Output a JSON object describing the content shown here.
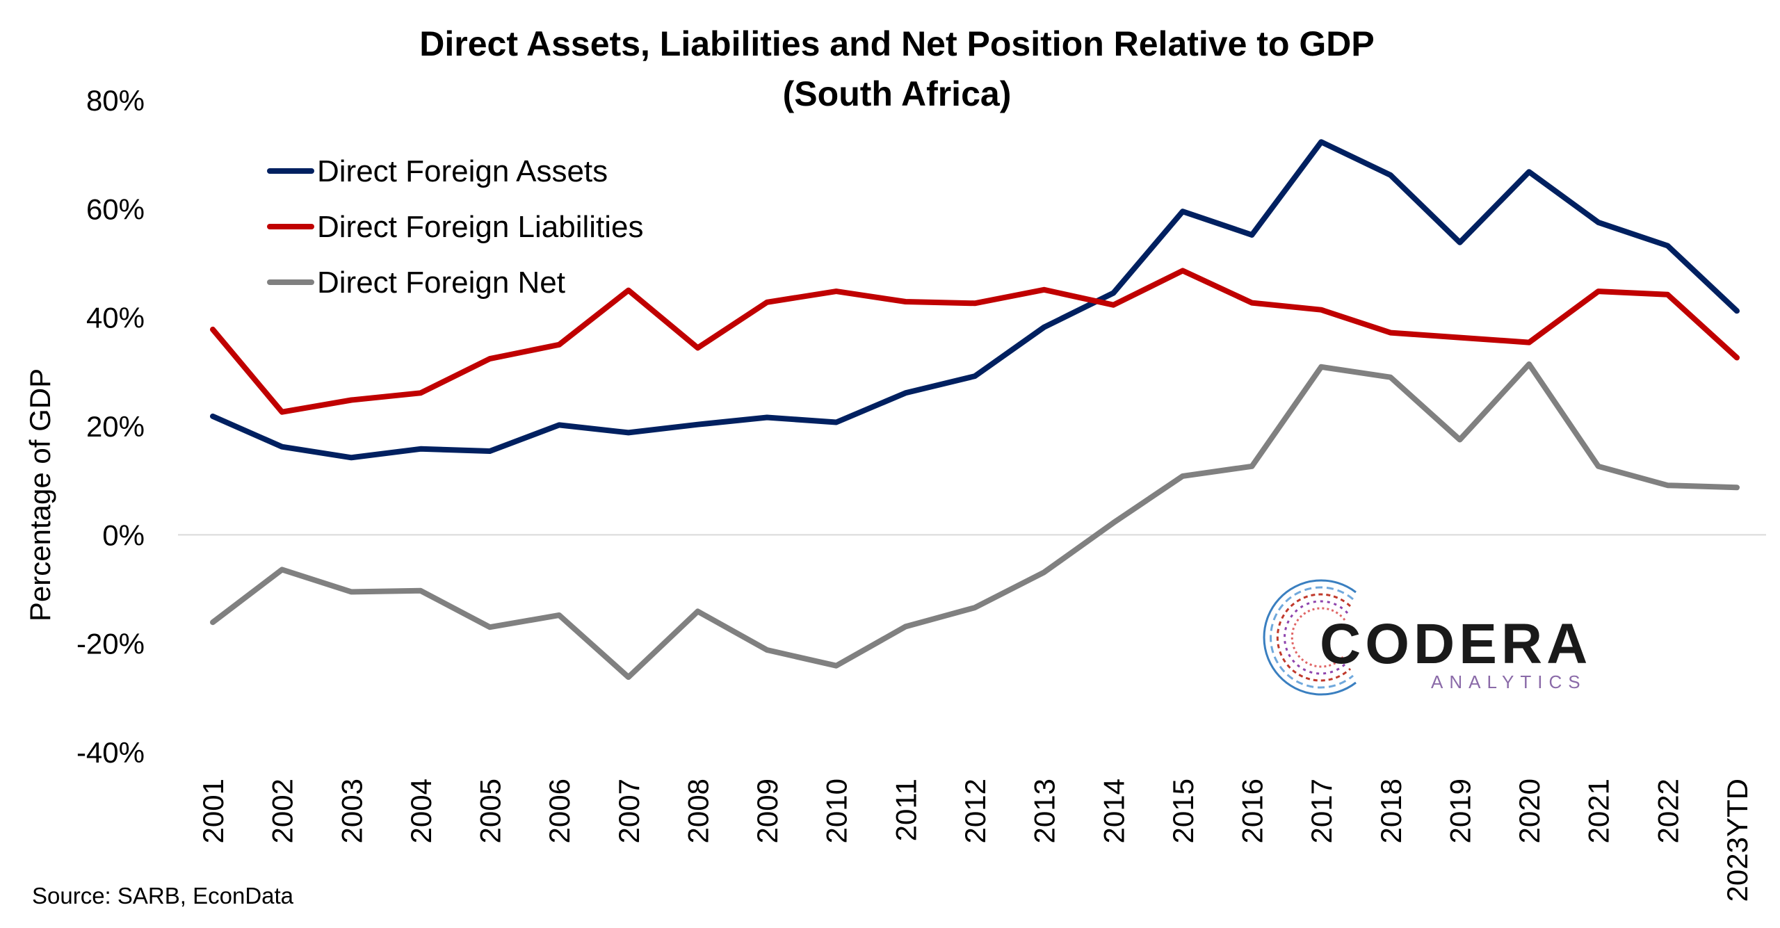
{
  "chart_data": {
    "type": "line",
    "title": [
      "Direct Assets, Liabilities and Net Position Relative to GDP",
      "(South Africa)"
    ],
    "ylabel": "Percentage of GDP",
    "xlabel": "",
    "categories": [
      "2001",
      "2002",
      "2003",
      "2004",
      "2005",
      "2006",
      "2007",
      "2008",
      "2009",
      "2010",
      "2011",
      "2012",
      "2013",
      "2014",
      "2015",
      "2016",
      "2017",
      "2018",
      "2019",
      "2020",
      "2021",
      "2022",
      "2023YTD"
    ],
    "ylim": [
      -40,
      80
    ],
    "yticks": [
      -40,
      -20,
      0,
      20,
      40,
      60,
      80
    ],
    "ytick_labels": [
      "-40%",
      "-20%",
      "0%",
      "20%",
      "40%",
      "60%",
      "80%"
    ],
    "grid": false,
    "legend_position": "top-left",
    "series": [
      {
        "name": "Direct Foreign Assets",
        "color": "#002060",
        "values": [
          21.8,
          16.2,
          14.2,
          15.8,
          15.4,
          20.2,
          18.8,
          20.3,
          21.6,
          20.7,
          26.1,
          29.2,
          38.2,
          44.5,
          59.5,
          55.2,
          72.3,
          66.2,
          53.8,
          66.8,
          57.5,
          53.2,
          41.2
        ]
      },
      {
        "name": "Direct Foreign Liabilities",
        "color": "#C00000",
        "values": [
          37.8,
          22.6,
          24.8,
          26.1,
          32.4,
          35.0,
          45.0,
          34.4,
          42.8,
          44.8,
          42.9,
          42.6,
          45.1,
          42.3,
          48.6,
          42.7,
          41.4,
          37.2,
          36.3,
          35.4,
          44.8,
          44.2,
          32.6
        ]
      },
      {
        "name": "Direct Foreign Net",
        "color": "#808080",
        "values": [
          -16.1,
          -6.4,
          -10.5,
          -10.3,
          -17.0,
          -14.8,
          -26.2,
          -14.1,
          -21.2,
          -24.1,
          -16.9,
          -13.4,
          -6.9,
          2.2,
          10.8,
          12.6,
          30.9,
          29.0,
          17.5,
          31.4,
          12.6,
          9.1,
          8.7
        ]
      }
    ],
    "source": "Source: SARB, EconData"
  },
  "logo": {
    "name": "CODERA",
    "tagline": "ANALYTICS"
  }
}
